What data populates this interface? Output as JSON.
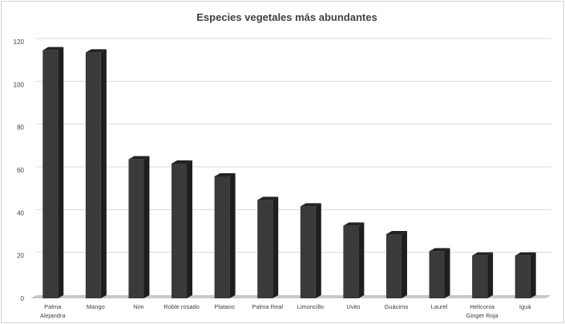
{
  "chart_data": {
    "type": "bar",
    "title": "Especies vegetales más abundantes",
    "categories": [
      [
        "Palma",
        "Alejandra"
      ],
      [
        "Mango"
      ],
      [
        "Nim"
      ],
      [
        "Roble rosado"
      ],
      [
        "Platano"
      ],
      [
        "Palma Real"
      ],
      [
        "Limoncillo"
      ],
      [
        "Uvito"
      ],
      [
        "Guácimo"
      ],
      [
        "Laurel"
      ],
      [
        "Heliconia",
        "Ginger Roja"
      ],
      [
        "Iguá"
      ]
    ],
    "values": [
      116,
      115,
      65,
      63,
      57,
      46,
      43,
      34,
      30,
      22,
      20,
      20
    ],
    "ylim": [
      0,
      120
    ],
    "yticks": [
      0,
      20,
      40,
      60,
      80,
      100,
      120
    ],
    "grid": true,
    "colors": {
      "bar_front": "#3a3a3a",
      "bar_side": "#1e1e1e",
      "bar_top": "#222222",
      "grid": "#d9d9d9",
      "floor": "#c8c8c8"
    }
  }
}
